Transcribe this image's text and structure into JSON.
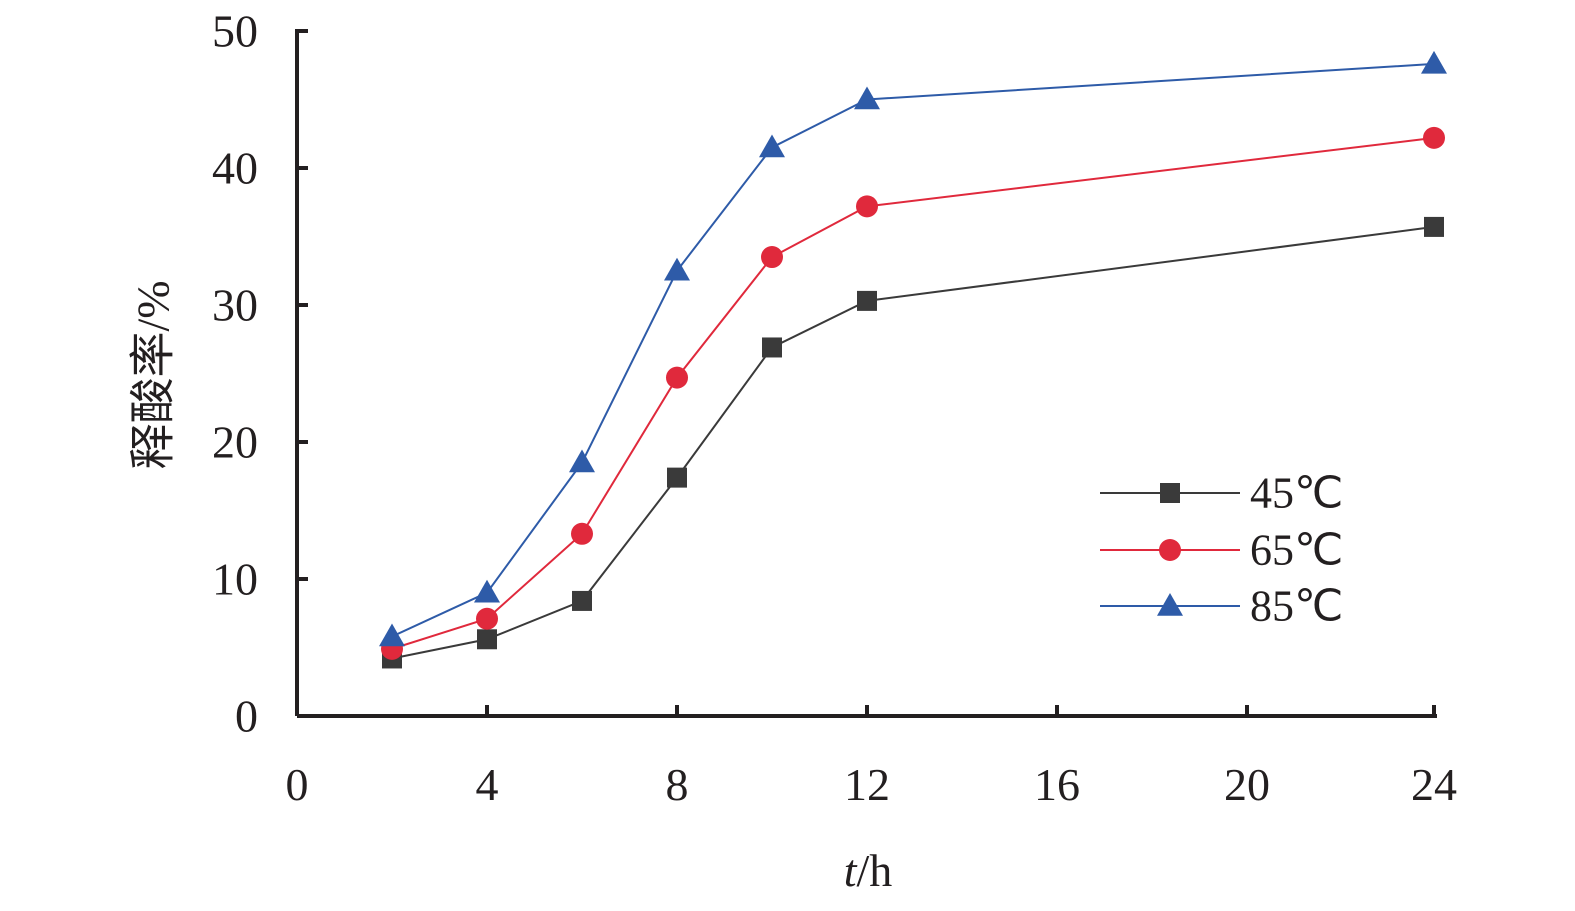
{
  "chart_data": {
    "type": "line",
    "xlabel_italic": "t",
    "xlabel_unit": "/h",
    "ylabel": "释酸率/%",
    "x_ticks": [
      "0",
      "4",
      "8",
      "12",
      "16",
      "20",
      "24"
    ],
    "y_ticks": [
      "0",
      "10",
      "20",
      "30",
      "40",
      "50"
    ],
    "ylim": [
      0,
      50
    ],
    "x": [
      2,
      4,
      6,
      8,
      10,
      12,
      24
    ],
    "legend_position": "right-middle",
    "grid": false,
    "series": [
      {
        "name": "45℃",
        "color": "#3a3a3a",
        "marker": "square",
        "values": [
          4.2,
          5.6,
          8.4,
          17.4,
          26.9,
          30.3,
          35.7
        ]
      },
      {
        "name": "65℃",
        "color": "#e0293c",
        "marker": "circle",
        "values": [
          4.9,
          7.1,
          13.3,
          24.7,
          33.5,
          37.2,
          42.2
        ]
      },
      {
        "name": "85℃",
        "color": "#2e5ba8",
        "marker": "triangle",
        "values": [
          5.8,
          9.0,
          18.5,
          32.5,
          41.5,
          45.0,
          47.6
        ]
      }
    ]
  }
}
